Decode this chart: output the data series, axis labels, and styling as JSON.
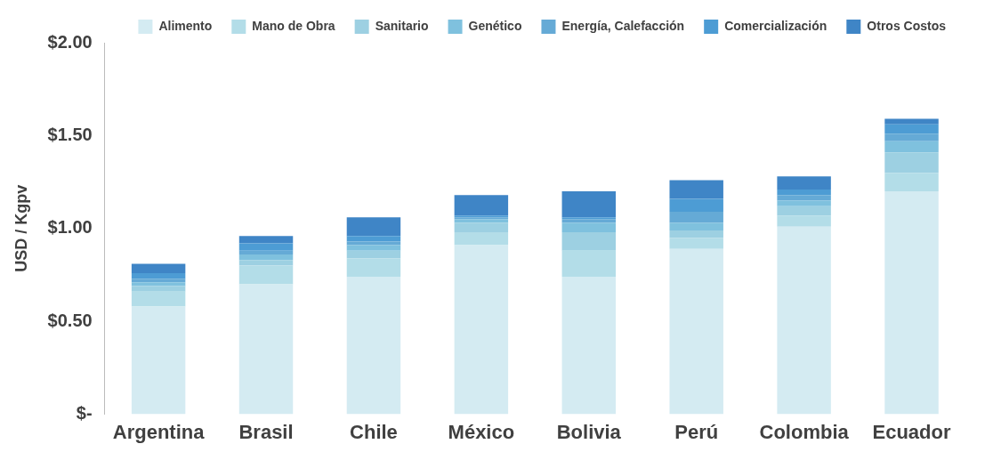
{
  "chart_data": {
    "type": "bar",
    "stacked": true,
    "ylabel": "USD / Kgpv",
    "categories": [
      "Argentina",
      "Brasil",
      "Chile",
      "México",
      "Bolivia",
      "Perú",
      "Colombia",
      "Ecuador"
    ],
    "series": [
      {
        "name": "Alimento",
        "color": "#d4ebf2",
        "values": [
          0.58,
          0.7,
          0.74,
          0.91,
          0.74,
          0.89,
          1.01,
          1.2
        ]
      },
      {
        "name": "Mano de Obra",
        "color": "#b3dde8",
        "values": [
          0.08,
          0.1,
          0.1,
          0.07,
          0.14,
          0.06,
          0.06,
          0.1
        ]
      },
      {
        "name": "Sanitario",
        "color": "#9dd0e2",
        "values": [
          0.03,
          0.03,
          0.04,
          0.05,
          0.1,
          0.04,
          0.05,
          0.11
        ]
      },
      {
        "name": "Genético",
        "color": "#7fc1de",
        "values": [
          0.02,
          0.03,
          0.03,
          0.02,
          0.05,
          0.04,
          0.03,
          0.06
        ]
      },
      {
        "name": "Energía, Calefacción",
        "color": "#65aad6",
        "values": [
          0.02,
          0.02,
          0.02,
          0.01,
          0.02,
          0.06,
          0.03,
          0.04
        ]
      },
      {
        "name": "Comercialización",
        "color": "#4d9cd4",
        "values": [
          0.03,
          0.04,
          0.03,
          0.01,
          0.01,
          0.07,
          0.03,
          0.05
        ]
      },
      {
        "name": "Otros Costos",
        "color": "#3f85c6",
        "values": [
          0.05,
          0.04,
          0.1,
          0.11,
          0.14,
          0.1,
          0.07,
          0.03
        ]
      }
    ],
    "ylim": [
      0,
      2
    ],
    "yticks": [
      {
        "value": 0,
        "label": "$-"
      },
      {
        "value": 0.5,
        "label": "$0.50"
      },
      {
        "value": 1,
        "label": "$1.00"
      },
      {
        "value": 1.5,
        "label": "$1.50"
      },
      {
        "value": 2,
        "label": "$2.00"
      }
    ],
    "grid": false,
    "legend": "top"
  }
}
